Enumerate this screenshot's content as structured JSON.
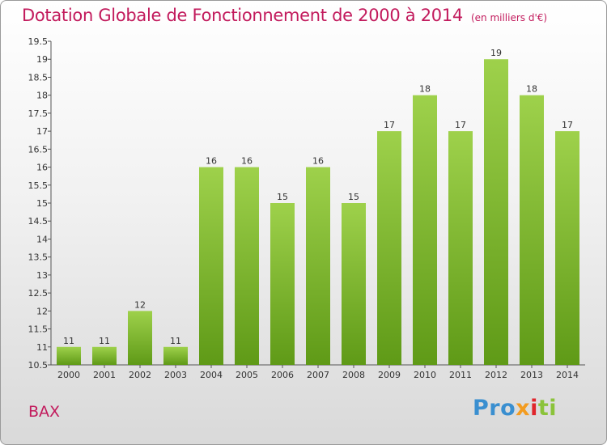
{
  "header": {
    "title": "Dotation Globale de Fonctionnement de 2000 à 2014",
    "unit": "(en milliers d'€)"
  },
  "footer": {
    "commune": "BAX",
    "logo": {
      "part1": "Pro",
      "part2": "x",
      "part3": "i",
      "part4": "ti"
    }
  },
  "colors": {
    "title": "#c21a5c",
    "bar_top": "#9ed14b",
    "bar_bottom": "#5f9a17"
  },
  "chart_data": {
    "type": "bar",
    "title": "Dotation Globale de Fonctionnement de 2000 à 2014",
    "xlabel": "",
    "ylabel": "",
    "categories": [
      "2000",
      "2001",
      "2002",
      "2003",
      "2004",
      "2005",
      "2006",
      "2007",
      "2008",
      "2009",
      "2010",
      "2011",
      "2012",
      "2013",
      "2014"
    ],
    "values": [
      11,
      11,
      12,
      11,
      16,
      16,
      15,
      16,
      15,
      17,
      18,
      17,
      19,
      18,
      17
    ],
    "data_labels": [
      "11",
      "11",
      "12",
      "11",
      "16",
      "16",
      "15",
      "16",
      "15",
      "17",
      "18",
      "17",
      "19",
      "18",
      "17"
    ],
    "ylim": [
      10.5,
      19.5
    ],
    "yticks": [
      "10.5",
      "11",
      "11.5",
      "12",
      "12.5",
      "13",
      "13.5",
      "14",
      "14.5",
      "15",
      "15.5",
      "16",
      "16.5",
      "17",
      "17.5",
      "18",
      "18.5",
      "19",
      "19.5"
    ],
    "grid": false,
    "legend": "none"
  }
}
